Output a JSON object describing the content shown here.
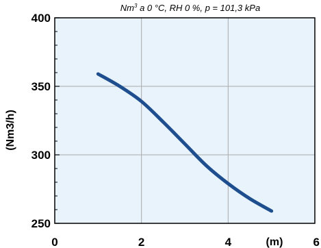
{
  "chart_data": {
    "type": "line",
    "title": "",
    "top_note_main": "Nm",
    "top_note_sup": "3",
    "top_note_rest": " a 0 °C, RH 0 %, p = 101,3 kPa",
    "xlabel": "(m)",
    "ylabel": "(Nm3/h)",
    "xlim": [
      0,
      6
    ],
    "ylim": [
      250,
      400
    ],
    "x_ticks": [
      0,
      2,
      4,
      6
    ],
    "x_tick_labels": [
      "0",
      "2",
      "4",
      "6"
    ],
    "y_ticks": [
      250,
      300,
      350,
      400
    ],
    "y_tick_labels": [
      "250",
      "300",
      "350",
      "400"
    ],
    "grid": true,
    "colors": {
      "plot_background": "#e8f3fb",
      "grid": "#a9a9a9",
      "frame": "#000000",
      "series": "#1f4e8f"
    },
    "series": [
      {
        "x": [
          1.0,
          1.5,
          2.0,
          2.5,
          3.0,
          3.5,
          4.0,
          4.5,
          5.0
        ],
        "y": [
          359,
          350,
          339,
          324,
          308,
          292,
          279,
          268,
          259
        ]
      }
    ]
  }
}
